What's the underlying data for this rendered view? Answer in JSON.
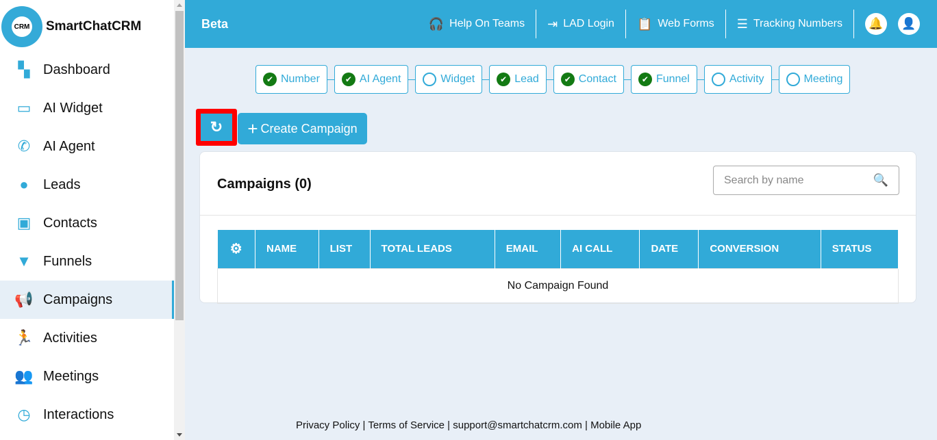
{
  "brand": {
    "name": "SmartChatCRM",
    "logo_text": "CRM"
  },
  "sidebar": {
    "items": [
      {
        "label": "Dashboard",
        "icon": "dashboard-icon",
        "glyph": "▚"
      },
      {
        "label": "AI Widget",
        "icon": "widget-icon",
        "glyph": "▭"
      },
      {
        "label": "AI Agent",
        "icon": "phone-icon",
        "glyph": "✆"
      },
      {
        "label": "Leads",
        "icon": "user-icon",
        "glyph": "●"
      },
      {
        "label": "Contacts",
        "icon": "contacts-icon",
        "glyph": "▣"
      },
      {
        "label": "Funnels",
        "icon": "funnel-icon",
        "glyph": "▼"
      },
      {
        "label": "Campaigns",
        "icon": "megaphone-icon",
        "glyph": "📢",
        "active": true
      },
      {
        "label": "Activities",
        "icon": "running-icon",
        "glyph": "🏃"
      },
      {
        "label": "Meetings",
        "icon": "users-icon",
        "glyph": "👥"
      },
      {
        "label": "Interactions",
        "icon": "clock-icon",
        "glyph": "◷"
      }
    ]
  },
  "topbar": {
    "beta": "Beta",
    "links": [
      {
        "label": "Help On Teams",
        "icon": "headset-icon",
        "glyph": "🎧"
      },
      {
        "label": "LAD Login",
        "icon": "login-icon",
        "glyph": "⇥"
      },
      {
        "label": "Web Forms",
        "icon": "clipboard-icon",
        "glyph": "📋"
      },
      {
        "label": "Tracking Numbers",
        "icon": "list-icon",
        "glyph": "☰"
      }
    ]
  },
  "steps": [
    {
      "label": "Number",
      "done": true
    },
    {
      "label": "AI Agent",
      "done": true
    },
    {
      "label": "Widget",
      "done": false
    },
    {
      "label": "Lead",
      "done": true
    },
    {
      "label": "Contact",
      "done": true
    },
    {
      "label": "Funnel",
      "done": true
    },
    {
      "label": "Activity",
      "done": false
    },
    {
      "label": "Meeting",
      "done": false
    }
  ],
  "actions": {
    "create": "Create Campaign"
  },
  "campaigns": {
    "title": "Campaigns (0)",
    "search_placeholder": "Search by name",
    "columns": [
      "NAME",
      "LIST",
      "TOTAL LEADS",
      "EMAIL",
      "AI CALL",
      "DATE",
      "CONVERSION",
      "STATUS"
    ],
    "empty": "No Campaign Found"
  },
  "footer": "Privacy Policy | Terms of Service | support@smartchatcrm.com | Mobile App"
}
